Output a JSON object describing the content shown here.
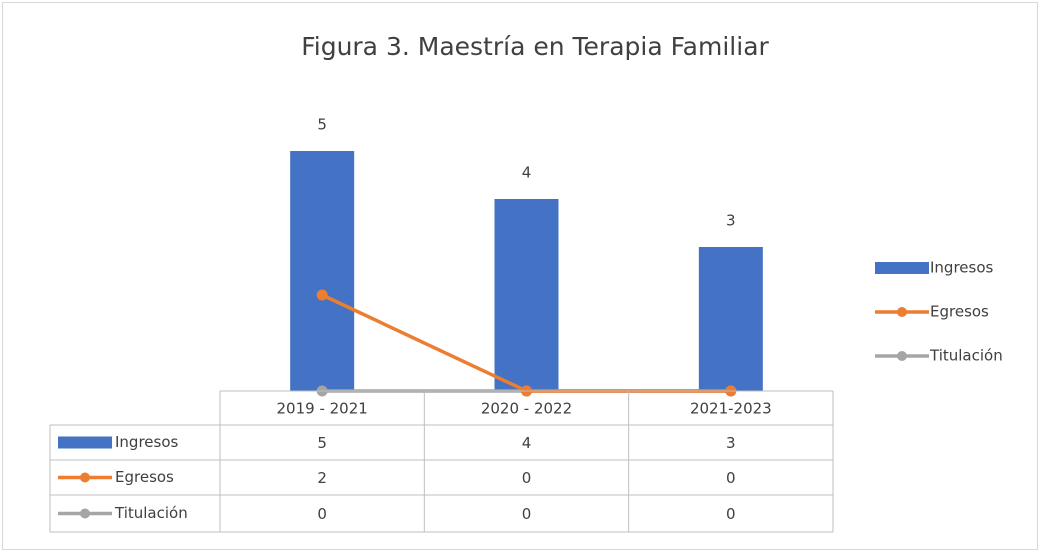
{
  "chart_data": {
    "type": "bar",
    "title": "Figura 3. Maestría en Terapia Familiar",
    "categories": [
      "2019 - 2021",
      "2020 - 2022",
      "2021-2023"
    ],
    "series": [
      {
        "name": "Ingresos",
        "type": "bar",
        "color": "#4472c4",
        "values": [
          5,
          4,
          3
        ]
      },
      {
        "name": "Egresos",
        "type": "line",
        "color": "#ed7d31",
        "values": [
          2,
          0,
          0
        ]
      },
      {
        "name": "Titulación",
        "type": "line",
        "color": "#a5a5a5",
        "values": [
          0,
          0,
          0
        ]
      }
    ],
    "ylim": [
      0,
      6
    ],
    "legend": "right",
    "data_table": true
  }
}
